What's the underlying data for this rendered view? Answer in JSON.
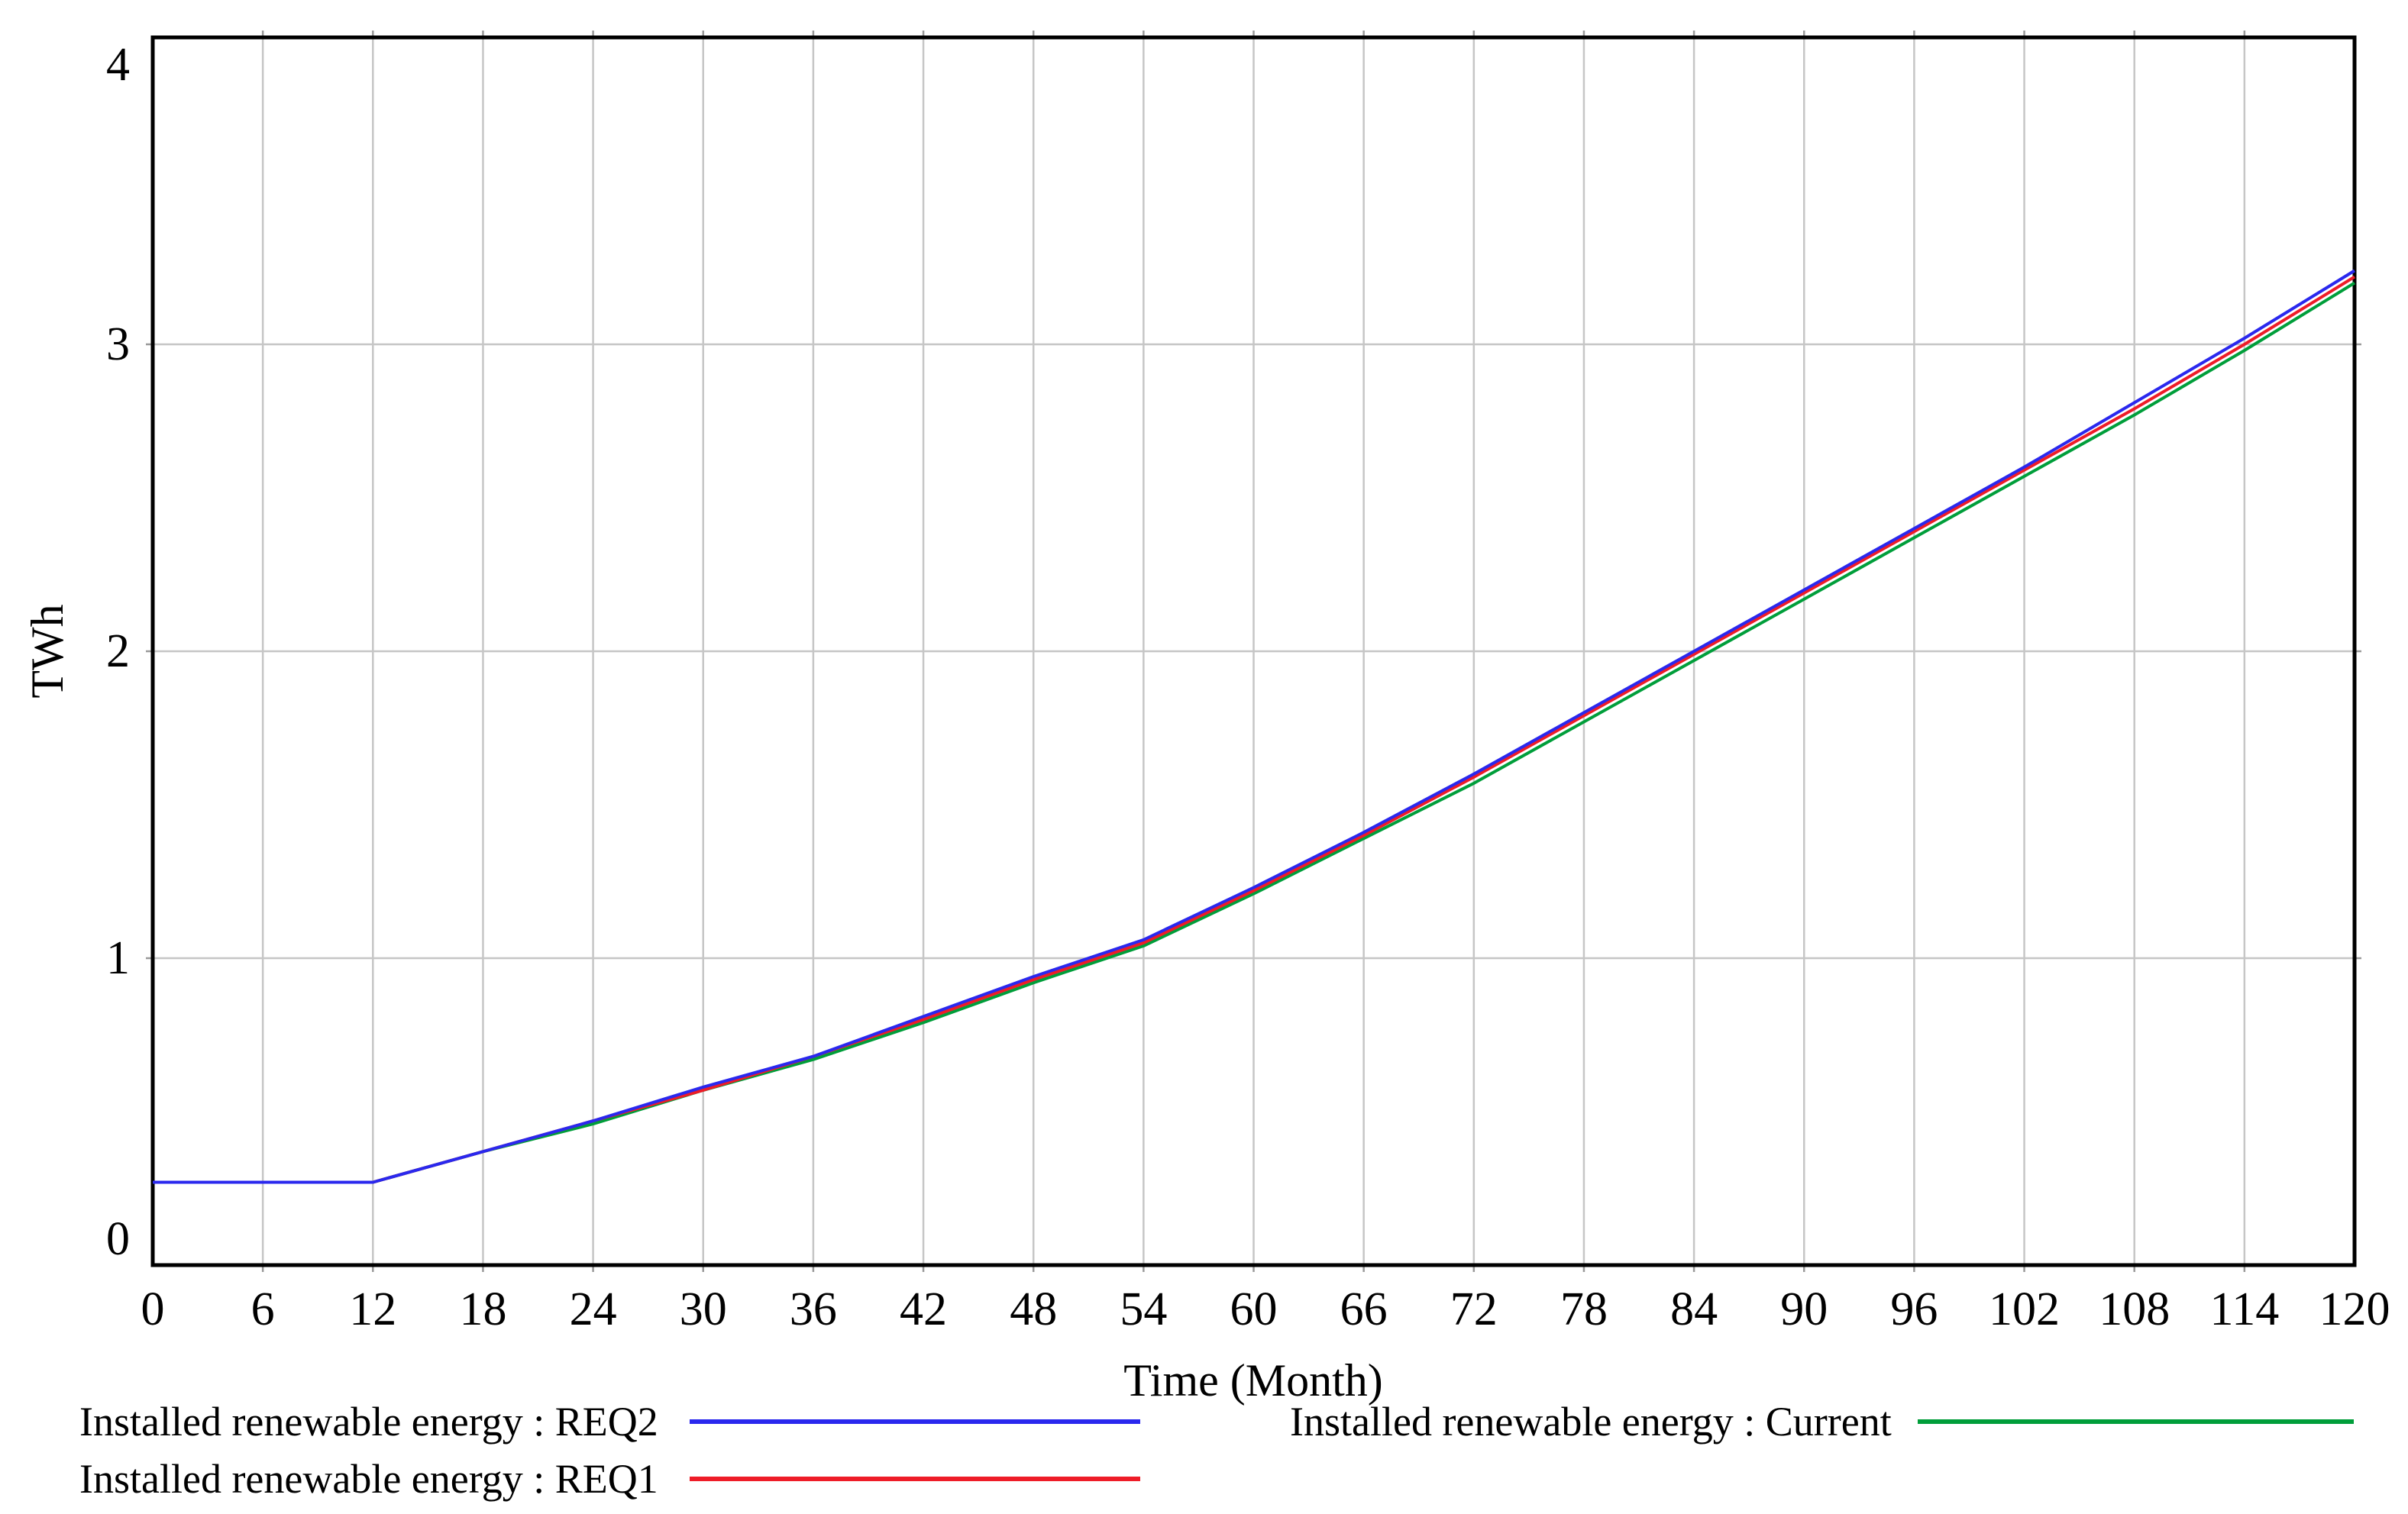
{
  "chart_data": {
    "type": "line",
    "title": "",
    "xlabel": "Time (Month)",
    "ylabel": "TWh",
    "xlim": [
      0,
      120
    ],
    "ylim": [
      0,
      4
    ],
    "x_ticks": [
      0,
      6,
      12,
      18,
      24,
      30,
      36,
      42,
      48,
      54,
      60,
      66,
      72,
      78,
      84,
      90,
      96,
      102,
      108,
      114,
      120
    ],
    "y_ticks": [
      0,
      1,
      2,
      3,
      4
    ],
    "grid": true,
    "legend_position": "bottom",
    "x": [
      0,
      6,
      12,
      18,
      24,
      30,
      36,
      42,
      48,
      54,
      60,
      66,
      72,
      78,
      84,
      90,
      96,
      102,
      108,
      114,
      120
    ],
    "series": [
      {
        "name": "Installed renewable energy : REQ2",
        "color": "#2a28ee",
        "values": [
          0.27,
          0.27,
          0.27,
          0.37,
          0.47,
          0.58,
          0.68,
          0.81,
          0.94,
          1.06,
          1.23,
          1.41,
          1.6,
          1.8,
          2.0,
          2.2,
          2.4,
          2.6,
          2.81,
          3.02,
          3.24
        ]
      },
      {
        "name": "Installed renewable energy : REQ1",
        "color": "#ee1c28",
        "values": [
          0.27,
          0.27,
          0.27,
          0.37,
          0.47,
          0.57,
          0.68,
          0.8,
          0.93,
          1.05,
          1.22,
          1.4,
          1.59,
          1.79,
          1.99,
          2.19,
          2.39,
          2.59,
          2.79,
          3.0,
          3.22
        ]
      },
      {
        "name": "Installed renewable energy : Current",
        "color": "#009e3a",
        "values": [
          0.27,
          0.27,
          0.27,
          0.37,
          0.46,
          0.57,
          0.67,
          0.79,
          0.92,
          1.04,
          1.21,
          1.39,
          1.57,
          1.77,
          1.97,
          2.17,
          2.37,
          2.57,
          2.77,
          2.98,
          3.2
        ]
      }
    ],
    "frame_color": "#000000",
    "grid_color": "#c6c6c6",
    "tick_mark_color": "#9a9a9a"
  }
}
